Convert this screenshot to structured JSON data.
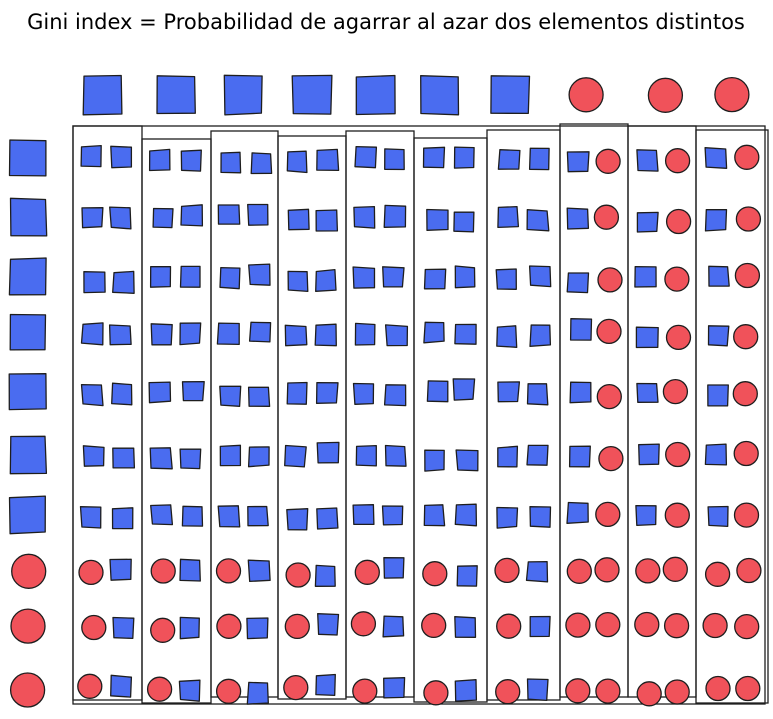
{
  "title": "Gini index = Probabilidad de agarrar al azar dos elementos distintos",
  "colors": {
    "square": "#4a6cf0",
    "circle": "#f0525a",
    "stroke": "#1e1e1e"
  },
  "top_row": [
    "square",
    "square",
    "square",
    "square",
    "square",
    "square",
    "square",
    "circle",
    "circle",
    "circle"
  ],
  "left_column": [
    "square",
    "square",
    "square",
    "square",
    "square",
    "square",
    "square",
    "circle",
    "circle",
    "circle"
  ]
}
